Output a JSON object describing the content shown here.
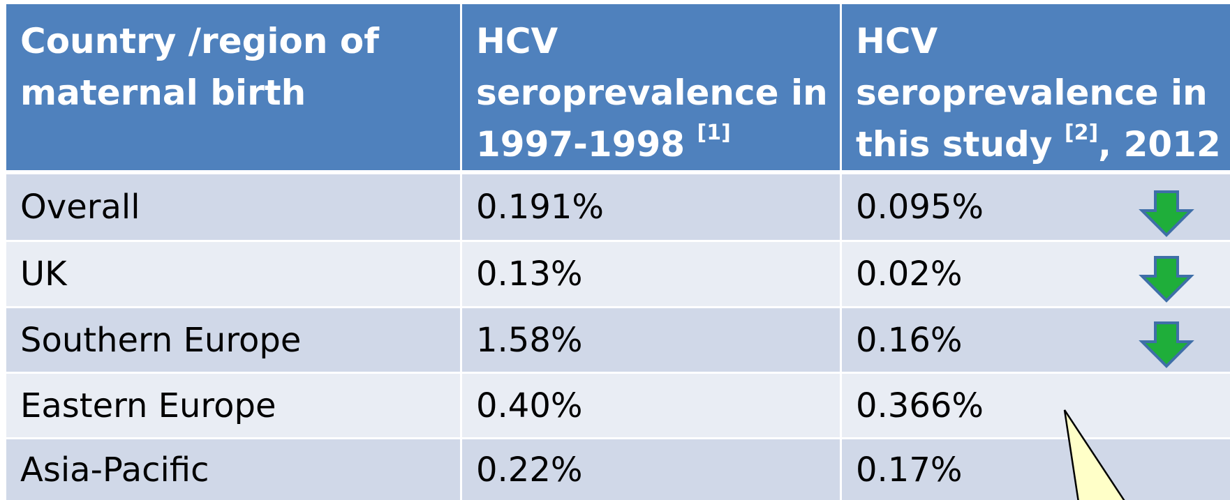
{
  "table": {
    "header": [
      {
        "lines": [
          "Country /region of",
          "maternal birth"
        ]
      },
      {
        "lines": [
          "HCV",
          "seroprevalence in",
          "1997-1998"
        ],
        "ref": "[1]"
      },
      {
        "lines": [
          "HCV",
          "seroprevalence in",
          "this study"
        ],
        "ref": "[2]",
        "after": ", 2012"
      }
    ],
    "rows": [
      [
        "Overall",
        "0.191%",
        "0.095%"
      ],
      [
        "UK",
        "0.13%",
        "0.02%"
      ],
      [
        "Southern Europe",
        "1.58%",
        "0.16%"
      ],
      [
        "Eastern Europe",
        "0.40%",
        "0.366%"
      ],
      [
        "Asia-Pacific",
        "0.22%",
        "0.17%"
      ]
    ]
  }
}
